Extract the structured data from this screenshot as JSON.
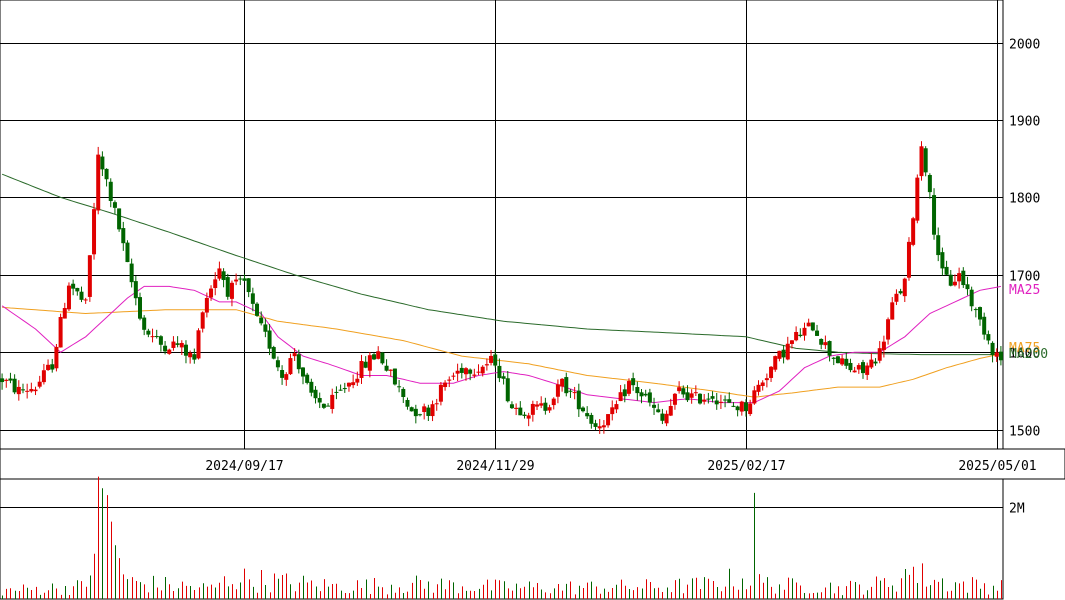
{
  "chart_data": {
    "type": "candlestick",
    "price_axis": {
      "ylim": [
        1475,
        2055
      ],
      "ticks": [
        1500,
        1600,
        1700,
        1800,
        1900,
        2000
      ],
      "tick_labels": [
        "1500",
        "1600",
        "1700",
        "1800",
        "1900",
        "2000"
      ]
    },
    "date_labels": [
      "2024/09/17",
      "2024/11/29",
      "2025/02/17",
      "2025/05/01"
    ],
    "date_label_bar_index": [
      58,
      118,
      178,
      238
    ],
    "bar_count": 240,
    "ma_labels": [
      "MA25",
      "MA75",
      "MA200"
    ],
    "colors": {
      "up": "#e00000",
      "down": "#006400",
      "ma25": "#e020c0",
      "ma75": "#f0a020",
      "ma200": "#2a6a2a",
      "grid": "#000000"
    },
    "volume_axis": {
      "ylim": [
        0,
        2600000
      ],
      "ticks": [
        2000000
      ],
      "tick_labels": [
        "2M"
      ]
    },
    "price_anchors": [
      [
        0,
        1565
      ],
      [
        4,
        1550
      ],
      [
        8,
        1555
      ],
      [
        12,
        1585
      ],
      [
        16,
        1690
      ],
      [
        20,
        1660
      ],
      [
        23,
        1850
      ],
      [
        25,
        1820
      ],
      [
        28,
        1760
      ],
      [
        30,
        1710
      ],
      [
        34,
        1630
      ],
      [
        38,
        1610
      ],
      [
        42,
        1610
      ],
      [
        46,
        1590
      ],
      [
        48,
        1660
      ],
      [
        52,
        1710
      ],
      [
        54,
        1680
      ],
      [
        58,
        1690
      ],
      [
        61,
        1640
      ],
      [
        64,
        1610
      ],
      [
        67,
        1570
      ],
      [
        70,
        1600
      ],
      [
        74,
        1540
      ],
      [
        78,
        1530
      ],
      [
        82,
        1555
      ],
      [
        86,
        1580
      ],
      [
        90,
        1600
      ],
      [
        94,
        1560
      ],
      [
        98,
        1525
      ],
      [
        102,
        1525
      ],
      [
        106,
        1560
      ],
      [
        110,
        1580
      ],
      [
        114,
        1580
      ],
      [
        118,
        1590
      ],
      [
        122,
        1530
      ],
      [
        126,
        1525
      ],
      [
        130,
        1530
      ],
      [
        134,
        1560
      ],
      [
        138,
        1535
      ],
      [
        142,
        1505
      ],
      [
        146,
        1520
      ],
      [
        150,
        1560
      ],
      [
        154,
        1540
      ],
      [
        158,
        1510
      ],
      [
        162,
        1550
      ],
      [
        166,
        1540
      ],
      [
        170,
        1545
      ],
      [
        174,
        1530
      ],
      [
        178,
        1530
      ],
      [
        182,
        1565
      ],
      [
        186,
        1595
      ],
      [
        190,
        1620
      ],
      [
        194,
        1635
      ],
      [
        198,
        1600
      ],
      [
        202,
        1580
      ],
      [
        206,
        1575
      ],
      [
        210,
        1600
      ],
      [
        213,
        1660
      ],
      [
        216,
        1690
      ],
      [
        218,
        1780
      ],
      [
        220,
        1870
      ],
      [
        221,
        1840
      ],
      [
        223,
        1760
      ],
      [
        225,
        1700
      ],
      [
        227,
        1690
      ],
      [
        229,
        1700
      ],
      [
        231,
        1680
      ],
      [
        233,
        1650
      ],
      [
        235,
        1630
      ],
      [
        237,
        1605
      ],
      [
        239,
        1590
      ]
    ],
    "volume_anchors": [
      [
        0,
        200000
      ],
      [
        10,
        250000
      ],
      [
        20,
        300000
      ],
      [
        23,
        2000000
      ],
      [
        25,
        1800000
      ],
      [
        30,
        400000
      ],
      [
        50,
        250000
      ],
      [
        55,
        500000
      ],
      [
        80,
        300000
      ],
      [
        100,
        350000
      ],
      [
        120,
        280000
      ],
      [
        140,
        280000
      ],
      [
        160,
        300000
      ],
      [
        170,
        350000
      ],
      [
        176,
        500000
      ],
      [
        180,
        400000
      ],
      [
        190,
        300000
      ],
      [
        195,
        350000
      ],
      [
        200,
        250000
      ],
      [
        210,
        350000
      ],
      [
        216,
        500000
      ],
      [
        220,
        550000
      ],
      [
        225,
        400000
      ],
      [
        230,
        350000
      ],
      [
        239,
        300000
      ]
    ],
    "spikes": [
      [
        24,
        2400000
      ],
      [
        25,
        2250000
      ],
      [
        180,
        2300000
      ],
      [
        216,
        650000
      ],
      [
        218,
        700000
      ]
    ],
    "ma25_anchors": [
      [
        0,
        1660
      ],
      [
        8,
        1630
      ],
      [
        14,
        1600
      ],
      [
        20,
        1620
      ],
      [
        26,
        1650
      ],
      [
        30,
        1670
      ],
      [
        34,
        1685
      ],
      [
        40,
        1685
      ],
      [
        46,
        1680
      ],
      [
        52,
        1665
      ],
      [
        56,
        1665
      ],
      [
        62,
        1650
      ],
      [
        66,
        1620
      ],
      [
        72,
        1595
      ],
      [
        78,
        1585
      ],
      [
        86,
        1570
      ],
      [
        92,
        1570
      ],
      [
        100,
        1560
      ],
      [
        108,
        1560
      ],
      [
        114,
        1570
      ],
      [
        120,
        1575
      ],
      [
        126,
        1570
      ],
      [
        132,
        1560
      ],
      [
        140,
        1545
      ],
      [
        148,
        1540
      ],
      [
        156,
        1535
      ],
      [
        164,
        1540
      ],
      [
        172,
        1535
      ],
      [
        180,
        1535
      ],
      [
        186,
        1550
      ],
      [
        192,
        1580
      ],
      [
        198,
        1595
      ],
      [
        204,
        1600
      ],
      [
        210,
        1600
      ],
      [
        216,
        1620
      ],
      [
        222,
        1650
      ],
      [
        228,
        1665
      ],
      [
        234,
        1680
      ],
      [
        239,
        1685
      ]
    ],
    "ma75_anchors": [
      [
        0,
        1658
      ],
      [
        20,
        1650
      ],
      [
        40,
        1655
      ],
      [
        56,
        1655
      ],
      [
        66,
        1640
      ],
      [
        80,
        1630
      ],
      [
        96,
        1615
      ],
      [
        110,
        1595
      ],
      [
        126,
        1585
      ],
      [
        140,
        1570
      ],
      [
        156,
        1560
      ],
      [
        170,
        1550
      ],
      [
        180,
        1542
      ],
      [
        190,
        1548
      ],
      [
        200,
        1555
      ],
      [
        210,
        1555
      ],
      [
        218,
        1565
      ],
      [
        226,
        1580
      ],
      [
        234,
        1592
      ],
      [
        239,
        1598
      ]
    ],
    "ma200_anchors": [
      [
        0,
        1830
      ],
      [
        14,
        1800
      ],
      [
        26,
        1780
      ],
      [
        40,
        1755
      ],
      [
        56,
        1725
      ],
      [
        70,
        1700
      ],
      [
        86,
        1675
      ],
      [
        102,
        1655
      ],
      [
        120,
        1640
      ],
      [
        140,
        1630
      ],
      [
        160,
        1625
      ],
      [
        178,
        1620
      ],
      [
        190,
        1605
      ],
      [
        200,
        1600
      ],
      [
        210,
        1598
      ],
      [
        220,
        1597
      ],
      [
        230,
        1597
      ],
      [
        239,
        1597
      ]
    ]
  }
}
